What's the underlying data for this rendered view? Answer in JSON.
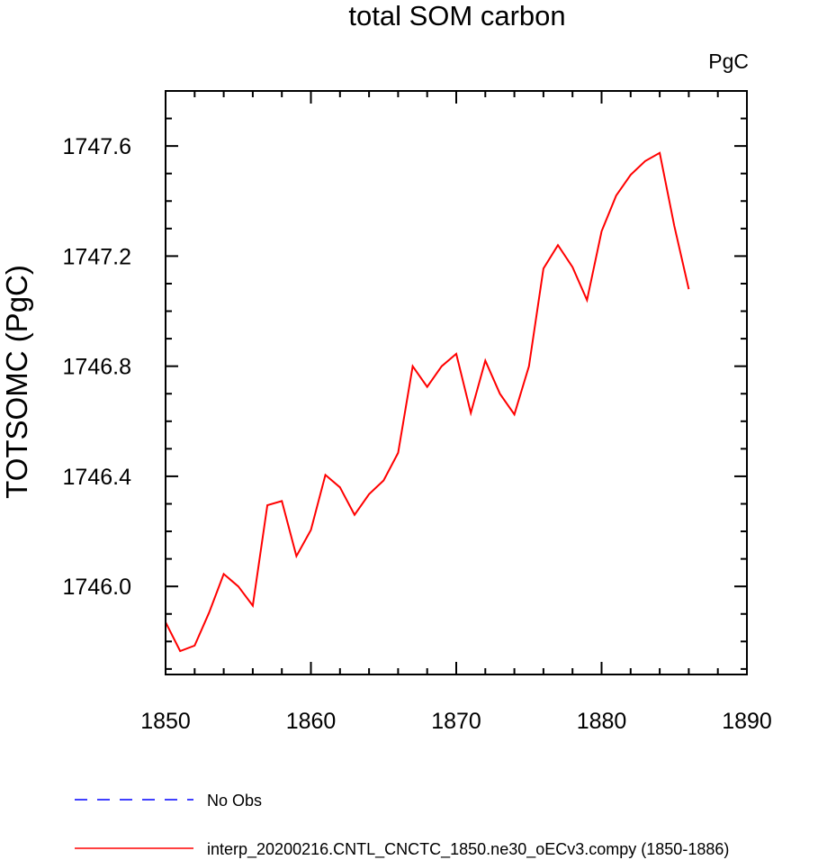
{
  "chart_data": {
    "type": "line",
    "title": "total SOM carbon",
    "units_label": "PgC",
    "xlabel": "",
    "ylabel": "TOTSOMC  (PgC)",
    "xlim": [
      1850,
      1890
    ],
    "ylim": [
      1745.68,
      1747.8
    ],
    "x_ticks": [
      1850,
      1860,
      1870,
      1880,
      1890
    ],
    "x_tick_labels": [
      "1850",
      "1860",
      "1870",
      "1880",
      "1890"
    ],
    "y_ticks": [
      1746.0,
      1746.4,
      1746.8,
      1747.2,
      1747.6
    ],
    "y_tick_labels": [
      "1746.0",
      "1746.4",
      "1746.8",
      "1747.2",
      "1747.6"
    ],
    "grid": false,
    "legend_position": "bottom-left",
    "series": [
      {
        "name": "No Obs",
        "color": "#0000ff",
        "dash": "dashed",
        "x": [],
        "y": []
      },
      {
        "name": "interp_20200216.CNTL_CNCTC_1850.ne30_oECv3.compy (1850-1886)",
        "color": "#ff0000",
        "dash": "solid",
        "x": [
          1850,
          1851,
          1852,
          1853,
          1854,
          1855,
          1856,
          1857,
          1858,
          1859,
          1860,
          1861,
          1862,
          1863,
          1864,
          1865,
          1866,
          1867,
          1868,
          1869,
          1870,
          1871,
          1872,
          1873,
          1874,
          1875,
          1876,
          1877,
          1878,
          1879,
          1880,
          1881,
          1882,
          1883,
          1884,
          1885,
          1886
        ],
        "y": [
          1745.87,
          1745.765,
          1745.785,
          1745.905,
          1746.045,
          1746.0,
          1745.93,
          1746.295,
          1746.31,
          1746.11,
          1746.205,
          1746.405,
          1746.36,
          1746.26,
          1746.335,
          1746.385,
          1746.485,
          1746.8,
          1746.725,
          1746.8,
          1746.845,
          1746.63,
          1746.82,
          1746.7,
          1746.625,
          1746.8,
          1747.155,
          1747.24,
          1747.16,
          1747.04,
          1747.29,
          1747.42,
          1747.495,
          1747.545,
          1747.575,
          1747.31,
          1747.08
        ]
      }
    ]
  }
}
